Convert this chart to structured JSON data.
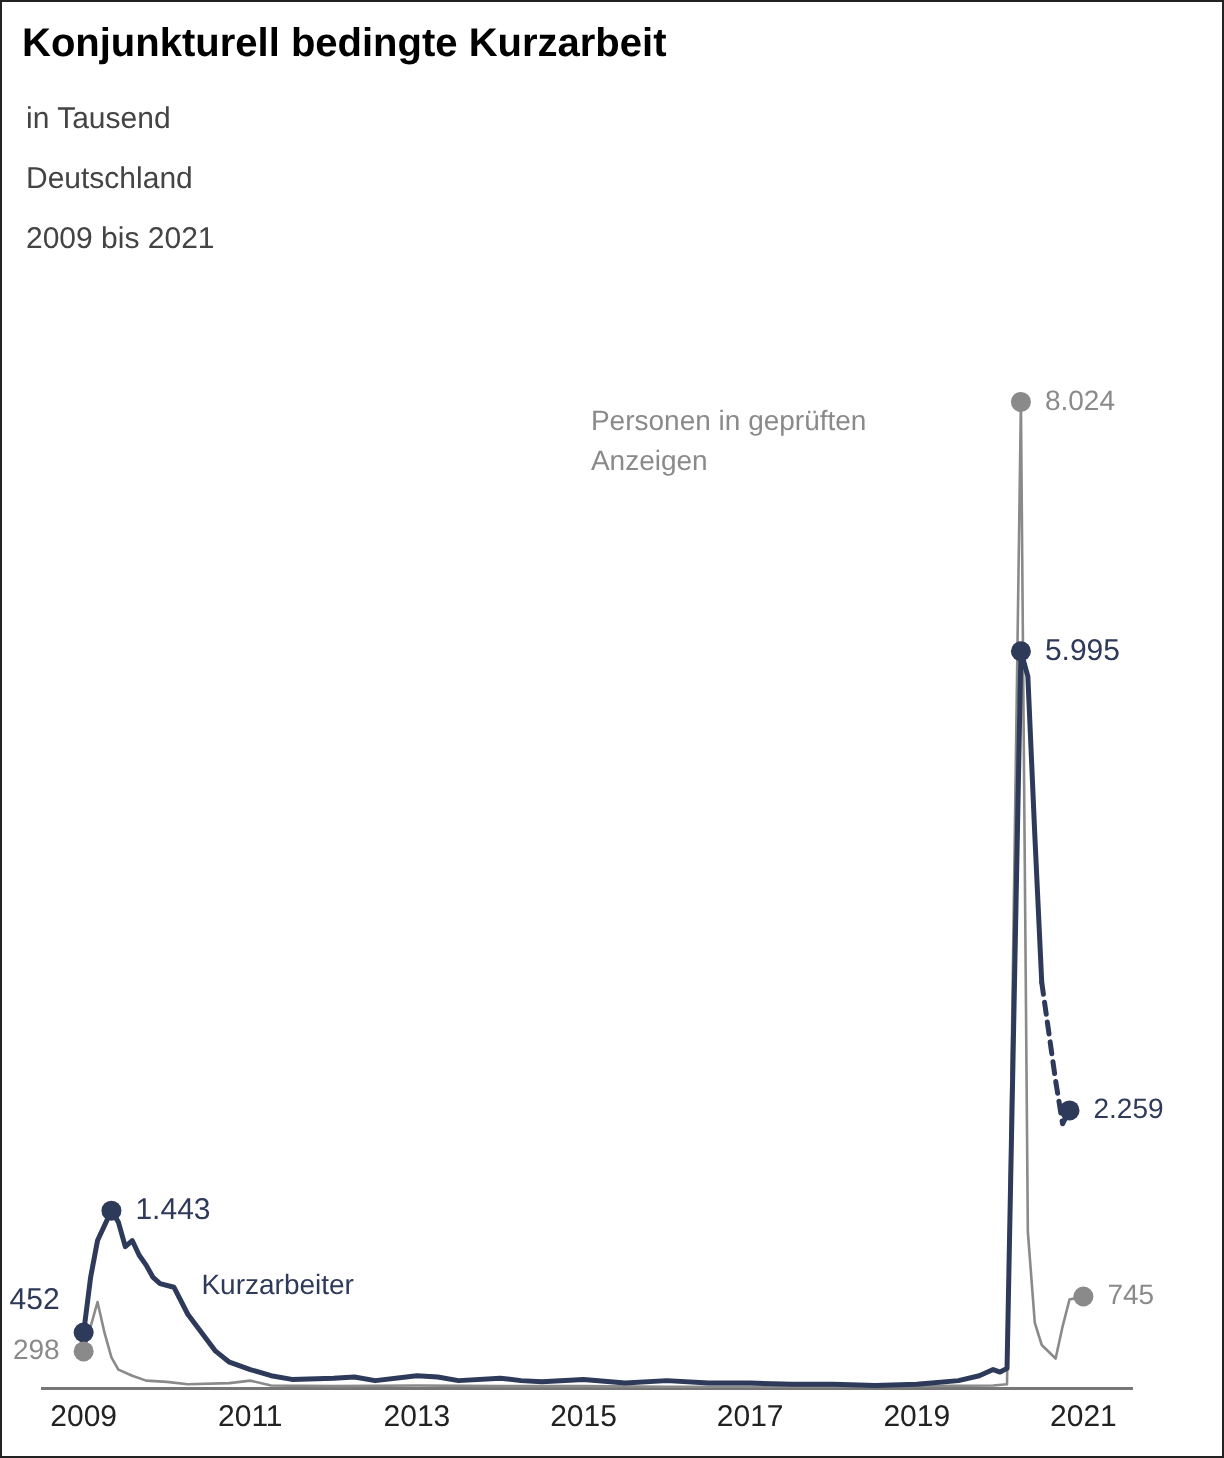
{
  "chart_data": {
    "type": "line",
    "title": "Konjunkturell bedingte Kurzarbeit",
    "subtitle": "in Tausend\nDeutschland\n2009 bis 2021",
    "xlim": [
      "2008-07",
      "2021-08"
    ],
    "xticks": [
      "2009",
      "2011",
      "2013",
      "2015",
      "2017",
      "2019",
      "2021"
    ],
    "tick_labels": "x",
    "grid": false,
    "legend": false,
    "series": [
      {
        "name": "Kurzarbeiter",
        "color": "#2e3a59",
        "x": [
          "2009-01",
          "2009-02",
          "2009-03",
          "2009-05",
          "2009-06",
          "2009-07",
          "2009-08",
          "2009-09",
          "2009-10",
          "2009-11",
          "2009-12",
          "2010-02",
          "2010-04",
          "2010-06",
          "2010-08",
          "2010-10",
          "2011-01",
          "2011-04",
          "2011-07",
          "2012-01",
          "2012-04",
          "2012-07",
          "2013-01",
          "2013-04",
          "2013-07",
          "2014-01",
          "2014-04",
          "2014-07",
          "2015-01",
          "2015-07",
          "2016-01",
          "2016-07",
          "2017-01",
          "2017-07",
          "2018-01",
          "2018-07",
          "2019-01",
          "2019-07",
          "2019-10",
          "2019-12",
          "2020-01",
          "2020-02",
          "2020-04",
          "2020-05",
          "2020-06",
          "2020-07"
        ],
        "values": [
          452,
          900,
          1200,
          1443,
          1350,
          1150,
          1200,
          1080,
          1000,
          900,
          850,
          820,
          600,
          450,
          300,
          210,
          150,
          100,
          70,
          80,
          90,
          60,
          100,
          90,
          60,
          80,
          60,
          50,
          70,
          40,
          60,
          40,
          40,
          30,
          30,
          20,
          30,
          60,
          100,
          150,
          130,
          160,
          5995,
          5791,
          4500,
          3300
        ],
        "value_labels": [
          "452",
          null,
          null,
          "1.443",
          null,
          null,
          null,
          null,
          null,
          null,
          null,
          null,
          null,
          null,
          null,
          null,
          null,
          null,
          null,
          null,
          null,
          null,
          null,
          null,
          null,
          null,
          null,
          null,
          null,
          null,
          null,
          null,
          null,
          null,
          null,
          null,
          null,
          null,
          null,
          null,
          null,
          null,
          "5.995",
          null,
          null,
          null
        ]
      },
      {
        "color": "#2e3a59",
        "line_style": "dashed",
        "x": [
          "2020-07",
          "2020-08",
          "2020-09",
          "2020-10",
          "2020-11"
        ],
        "values": [
          3300,
          2900,
          2500,
          2150,
          2259
        ],
        "value_labels": [
          null,
          null,
          null,
          null,
          "2.259"
        ]
      },
      {
        "name": "Personen in geprüften Anzeigen",
        "color": "#8a8a8a",
        "x": [
          "2009-01",
          "2009-03",
          "2009-04",
          "2009-05",
          "2009-06",
          "2009-08",
          "2009-10",
          "2010-01",
          "2010-04",
          "2010-10",
          "2011-01",
          "2011-04",
          "2012-01",
          "2013-01",
          "2014-01",
          "2015-01",
          "2016-01",
          "2017-01",
          "2018-01",
          "2019-01",
          "2019-12",
          "2020-02",
          "2020-04",
          "2020-05",
          "2020-06",
          "2020-07",
          "2020-09",
          "2020-10",
          "2020-11",
          "2021-01"
        ],
        "values": [
          298,
          700,
          450,
          250,
          150,
          100,
          60,
          50,
          30,
          40,
          60,
          20,
          15,
          20,
          15,
          15,
          10,
          10,
          10,
          15,
          20,
          30,
          8024,
          1270,
          530,
          350,
          240,
          500,
          720,
          745
        ],
        "value_labels": [
          "298",
          null,
          null,
          null,
          null,
          null,
          null,
          null,
          null,
          null,
          null,
          null,
          null,
          null,
          null,
          null,
          null,
          null,
          null,
          null,
          null,
          null,
          "8.024",
          null,
          null,
          null,
          null,
          null,
          null,
          "745"
        ]
      }
    ]
  }
}
